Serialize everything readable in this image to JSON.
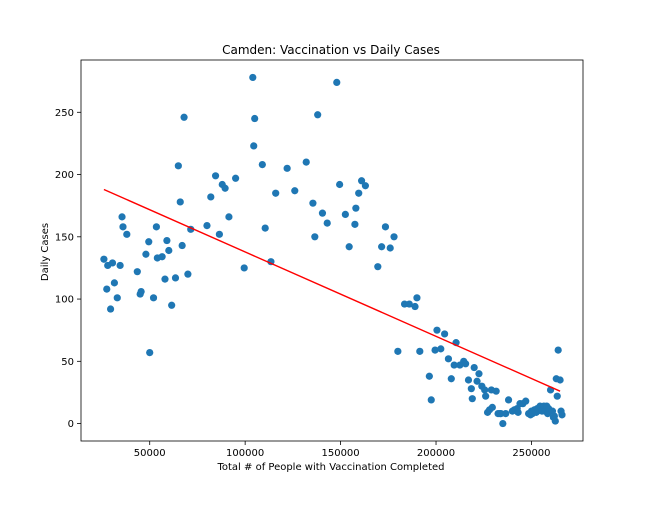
{
  "chart_data": {
    "type": "scatter",
    "title": "Camden: Vaccination vs Daily Cases",
    "xlabel": "Total # of People with Vaccination Completed",
    "ylabel": "Daily Cases",
    "xlim": [
      14000,
      277000
    ],
    "ylim": [
      -14,
      292
    ],
    "xticks": [
      50000,
      100000,
      150000,
      200000,
      250000
    ],
    "yticks": [
      0,
      50,
      100,
      150,
      200,
      250
    ],
    "grid": false,
    "legend": "none",
    "colors": {
      "points": "#1f77b4",
      "trend": "#ff0000"
    },
    "trendline": {
      "x": [
        26000,
        265000
      ],
      "y": [
        188,
        26
      ]
    },
    "points": [
      [
        26000,
        132
      ],
      [
        27500,
        108
      ],
      [
        28000,
        127
      ],
      [
        29500,
        92
      ],
      [
        30500,
        129
      ],
      [
        31500,
        113
      ],
      [
        33000,
        101
      ],
      [
        34500,
        127
      ],
      [
        35500,
        166
      ],
      [
        36000,
        158
      ],
      [
        38000,
        152
      ],
      [
        43500,
        122
      ],
      [
        45000,
        104
      ],
      [
        45500,
        106
      ],
      [
        48000,
        136
      ],
      [
        49500,
        146
      ],
      [
        50000,
        57
      ],
      [
        52000,
        101
      ],
      [
        53500,
        158
      ],
      [
        54000,
        133
      ],
      [
        56500,
        134
      ],
      [
        58000,
        116
      ],
      [
        59000,
        147
      ],
      [
        60000,
        139
      ],
      [
        61500,
        95
      ],
      [
        63500,
        117
      ],
      [
        65000,
        207
      ],
      [
        66000,
        178
      ],
      [
        67000,
        143
      ],
      [
        68000,
        246
      ],
      [
        70000,
        120
      ],
      [
        71500,
        156
      ],
      [
        80000,
        159
      ],
      [
        82000,
        182
      ],
      [
        84500,
        199
      ],
      [
        86500,
        152
      ],
      [
        88000,
        192
      ],
      [
        89500,
        189
      ],
      [
        91500,
        166
      ],
      [
        95000,
        197
      ],
      [
        99500,
        125
      ],
      [
        104000,
        278
      ],
      [
        104500,
        223
      ],
      [
        105000,
        245
      ],
      [
        109000,
        208
      ],
      [
        110500,
        157
      ],
      [
        113500,
        130
      ],
      [
        116000,
        185
      ],
      [
        122000,
        205
      ],
      [
        126000,
        187
      ],
      [
        132000,
        210
      ],
      [
        135500,
        177
      ],
      [
        136500,
        150
      ],
      [
        138000,
        248
      ],
      [
        140500,
        169
      ],
      [
        143000,
        161
      ],
      [
        148000,
        274
      ],
      [
        149500,
        192
      ],
      [
        152500,
        168
      ],
      [
        154500,
        142
      ],
      [
        157500,
        160
      ],
      [
        158000,
        173
      ],
      [
        159500,
        185
      ],
      [
        161000,
        195
      ],
      [
        163000,
        191
      ],
      [
        169500,
        126
      ],
      [
        171500,
        142
      ],
      [
        173500,
        158
      ],
      [
        176000,
        141
      ],
      [
        178000,
        150
      ],
      [
        180000,
        58
      ],
      [
        183500,
        96
      ],
      [
        186000,
        96
      ],
      [
        189000,
        94
      ],
      [
        190000,
        101
      ],
      [
        191500,
        58
      ],
      [
        196500,
        38
      ],
      [
        197500,
        19
      ],
      [
        199500,
        59
      ],
      [
        200500,
        75
      ],
      [
        202500,
        60
      ],
      [
        204500,
        72
      ],
      [
        206500,
        52
      ],
      [
        208000,
        36
      ],
      [
        209500,
        47
      ],
      [
        210500,
        65
      ],
      [
        212500,
        47
      ],
      [
        214500,
        50
      ],
      [
        215500,
        48
      ],
      [
        217000,
        35
      ],
      [
        218500,
        28
      ],
      [
        219000,
        20
      ],
      [
        220000,
        45
      ],
      [
        221500,
        34
      ],
      [
        222500,
        40
      ],
      [
        224000,
        30
      ],
      [
        225500,
        27
      ],
      [
        226000,
        22
      ],
      [
        227000,
        9
      ],
      [
        228000,
        11
      ],
      [
        229000,
        27
      ],
      [
        229500,
        13
      ],
      [
        231500,
        26
      ],
      [
        232500,
        8
      ],
      [
        233500,
        8
      ],
      [
        234000,
        8
      ],
      [
        235000,
        0
      ],
      [
        236500,
        8
      ],
      [
        238000,
        19
      ],
      [
        240000,
        10
      ],
      [
        241000,
        11
      ],
      [
        242500,
        12
      ],
      [
        243000,
        9
      ],
      [
        244000,
        16
      ],
      [
        245500,
        16
      ],
      [
        247000,
        18
      ],
      [
        248500,
        8
      ],
      [
        249500,
        7
      ],
      [
        250000,
        10
      ],
      [
        250500,
        8
      ],
      [
        251500,
        11
      ],
      [
        252500,
        9
      ],
      [
        253000,
        12
      ],
      [
        254500,
        14
      ],
      [
        255500,
        10
      ],
      [
        256500,
        14
      ],
      [
        257000,
        10
      ],
      [
        258000,
        14
      ],
      [
        258500,
        8
      ],
      [
        259000,
        12
      ],
      [
        260000,
        27
      ],
      [
        261000,
        10
      ],
      [
        261500,
        5
      ],
      [
        262000,
        6
      ],
      [
        262500,
        2
      ],
      [
        263000,
        36
      ],
      [
        263500,
        22
      ],
      [
        264000,
        59
      ],
      [
        265000,
        35
      ],
      [
        265500,
        10
      ],
      [
        266000,
        7
      ]
    ]
  }
}
